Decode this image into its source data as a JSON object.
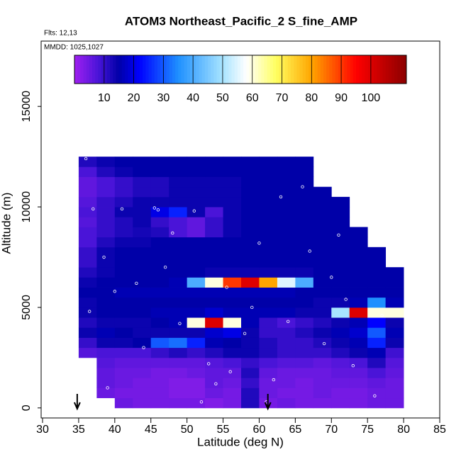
{
  "chart_data": {
    "type": "heatmap",
    "title": "ATOM3 Northeast_Pacific_2 S_fine_AMP",
    "flights": "Flts: 12,13",
    "dates": "MMDD: 1025,1027",
    "x_label": "Latitude (deg N)",
    "y_label": "Altitude (m)",
    "xlim": [
      30,
      85
    ],
    "xticks": [
      30,
      35,
      40,
      45,
      50,
      55,
      60,
      65,
      70,
      75,
      80,
      85
    ],
    "ylim": [
      -500,
      18250
    ],
    "yticks": [
      0,
      5000,
      10000,
      15000
    ],
    "x_edges": [
      35,
      37.5,
      40,
      42.5,
      45,
      47.5,
      50,
      52.5,
      55,
      57.5,
      60,
      62.5,
      65,
      67.5,
      70,
      72.5,
      75,
      77.5,
      80
    ],
    "y_edges": [
      0,
      500,
      1000,
      1500,
      2000,
      2500,
      3000,
      3500,
      4000,
      4500,
      5000,
      5500,
      6000,
      6500,
      7000,
      7500,
      8000,
      8500,
      9000,
      9500,
      10000,
      10500,
      11000,
      11500,
      12000,
      12500
    ],
    "values": [
      [
        null,
        null,
        5,
        4,
        4,
        4,
        4,
        3,
        4,
        12,
        4,
        5,
        4,
        4,
        4,
        4,
        5,
        5
      ],
      [
        null,
        5,
        4,
        4,
        4,
        3,
        3,
        5,
        4,
        12,
        5,
        4,
        4,
        5,
        4,
        4,
        5,
        5
      ],
      [
        null,
        6,
        5,
        4,
        4,
        3,
        3,
        6,
        5,
        10,
        5,
        5,
        4,
        5,
        5,
        5,
        6,
        5
      ],
      [
        null,
        6,
        5,
        5,
        4,
        4,
        5,
        6,
        6,
        12,
        6,
        5,
        5,
        5,
        6,
        6,
        8,
        6
      ],
      [
        null,
        7,
        6,
        6,
        6,
        6,
        6,
        7,
        8,
        10,
        8,
        7,
        7,
        6,
        7,
        8,
        12,
        7
      ],
      [
        7,
        8,
        8,
        8,
        10,
        12,
        10,
        12,
        14,
        14,
        12,
        10,
        10,
        10,
        12,
        14,
        16,
        9
      ],
      [
        10,
        14,
        14,
        15,
        30,
        32,
        25,
        16,
        15,
        14,
        12,
        10,
        10,
        12,
        14,
        16,
        25,
        14
      ],
      [
        14,
        16,
        15,
        14,
        14,
        14,
        14,
        18,
        20,
        14,
        10,
        10,
        12,
        14,
        16,
        18,
        30,
        16
      ],
      [
        12,
        14,
        14,
        14,
        15,
        16,
        60,
        100,
        60,
        16,
        10,
        8,
        10,
        12,
        14,
        16,
        22,
        14
      ],
      [
        14,
        15,
        15,
        15,
        16,
        16,
        16,
        18,
        16,
        16,
        16,
        16,
        14,
        14,
        50,
        100,
        60,
        60
      ],
      [
        14,
        15,
        15,
        15,
        15,
        15,
        15,
        15,
        15,
        15,
        15,
        15,
        15,
        14,
        14,
        16,
        35,
        16
      ],
      [
        15,
        15,
        16,
        16,
        16,
        16,
        16,
        16,
        16,
        16,
        16,
        16,
        15,
        15,
        15,
        15,
        15,
        15
      ],
      [
        14,
        15,
        15,
        15,
        15,
        16,
        40,
        60,
        90,
        100,
        80,
        55,
        40,
        15,
        15,
        15,
        15,
        15
      ],
      [
        12,
        14,
        15,
        15,
        15,
        15,
        15,
        14,
        14,
        14,
        14,
        14,
        14,
        15,
        15,
        15,
        15,
        15
      ],
      [
        10,
        14,
        15,
        15,
        15,
        15,
        15,
        15,
        15,
        15,
        15,
        15,
        15,
        15,
        15,
        15,
        15,
        null
      ],
      [
        10,
        14,
        15,
        15,
        15,
        15,
        15,
        15,
        15,
        15,
        15,
        15,
        15,
        15,
        15,
        15,
        15,
        null
      ],
      [
        8,
        12,
        14,
        14,
        15,
        15,
        15,
        15,
        15,
        15,
        15,
        15,
        15,
        15,
        15,
        15,
        null,
        null
      ],
      [
        8,
        10,
        12,
        13,
        12,
        8,
        6,
        10,
        14,
        15,
        15,
        15,
        15,
        15,
        15,
        15,
        null,
        null
      ],
      [
        7,
        10,
        12,
        14,
        10,
        8,
        6,
        10,
        14,
        15,
        15,
        15,
        15,
        15,
        15,
        null,
        null,
        null
      ],
      [
        8,
        10,
        14,
        14,
        20,
        25,
        14,
        8,
        14,
        15,
        15,
        15,
        15,
        15,
        15,
        null,
        null,
        null
      ],
      [
        7,
        10,
        12,
        14,
        14,
        14,
        14,
        14,
        14,
        15,
        15,
        15,
        15,
        15,
        15,
        null,
        null,
        null
      ],
      [
        6,
        8,
        10,
        12,
        12,
        14,
        14,
        14,
        14,
        15,
        15,
        15,
        15,
        15,
        null,
        null,
        null,
        null
      ],
      [
        6,
        8,
        10,
        12,
        12,
        14,
        14,
        14,
        14,
        15,
        15,
        15,
        15,
        null,
        null,
        null,
        null,
        null
      ],
      [
        8,
        12,
        14,
        15,
        15,
        15,
        15,
        15,
        15,
        15,
        15,
        15,
        15,
        null,
        null,
        null,
        null,
        null
      ],
      [
        12,
        14,
        15,
        15,
        15,
        15,
        15,
        15,
        15,
        15,
        15,
        15,
        15,
        null,
        null,
        null,
        null,
        null
      ]
    ],
    "colorscale": [
      [
        0,
        "#a020f0"
      ],
      [
        8,
        "#4a14d8"
      ],
      [
        15,
        "#0000a8"
      ],
      [
        22,
        "#0000ff"
      ],
      [
        35,
        "#1e90ff"
      ],
      [
        50,
        "#a8e4ff"
      ],
      [
        58,
        "#ffffff"
      ],
      [
        68,
        "#ffff60"
      ],
      [
        80,
        "#ffa500"
      ],
      [
        95,
        "#ff0000"
      ],
      [
        112,
        "#8b0000"
      ]
    ],
    "colorbar_lim": [
      0,
      112
    ],
    "colorbar_ticks": [
      10,
      20,
      30,
      40,
      50,
      60,
      70,
      80,
      90,
      100
    ],
    "samples": {
      "x": [
        36,
        37,
        38.5,
        41,
        43,
        45.5,
        47,
        49,
        51,
        53,
        55.5,
        58,
        60,
        62,
        64,
        66,
        69,
        71,
        73,
        75,
        77,
        36.5,
        40,
        44,
        48,
        52,
        56,
        59,
        63,
        67,
        72,
        76,
        79,
        39,
        46,
        54,
        61,
        70
      ],
      "y": [
        12400,
        9900,
        7500,
        9900,
        6200,
        9950,
        7000,
        4200,
        9800,
        2200,
        6000,
        3700,
        8200,
        1400,
        4300,
        11000,
        3200,
        8600,
        2100,
        9300,
        4600,
        4800,
        5800,
        3000,
        8700,
        300,
        1800,
        5000,
        10500,
        7800,
        5400,
        600,
        7100,
        1000,
        9850,
        1200,
        300,
        6500
      ]
    },
    "arrows": [
      34.8,
      61.2
    ]
  }
}
